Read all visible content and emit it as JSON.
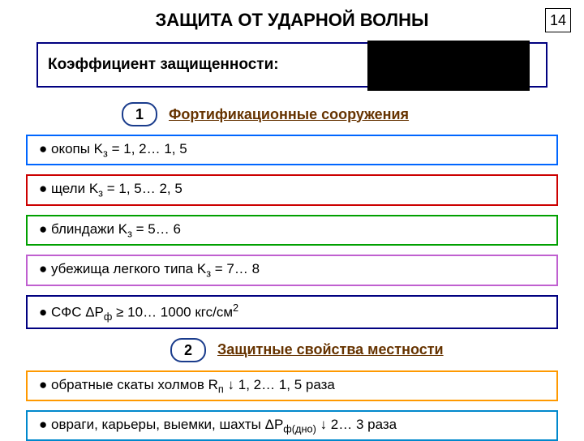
{
  "page_number": "14",
  "title": "ЗАЩИТА ОТ УДАРНОЙ ВОЛНЫ",
  "coefficient_label": "Коэффициент защищенности:",
  "blackbox_color": "#000000",
  "section1": {
    "num": "1",
    "title": "Фортификационные сооружения",
    "pill_border": "#1a3c8c",
    "title_color": "#663300"
  },
  "section2": {
    "num": "2",
    "title": "Защитные свойства местности",
    "pill_border": "#1a3c8c",
    "title_color": "#663300"
  },
  "items": [
    {
      "prefix": "● окопы  K",
      "sub": "з",
      "rest": " = 1, 2… 1, 5",
      "border": "#0066ff"
    },
    {
      "prefix": "●  щели  K",
      "sub": "з",
      "rest": " = 1, 5… 2, 5",
      "border": "#cc0000"
    },
    {
      "prefix": "●  блиндажи  K",
      "sub": "з",
      "rest": " = 5… 6",
      "border": "#00a000"
    },
    {
      "prefix": "●  убежища легкого типа  K",
      "sub": "з",
      "rest": " = 7… 8",
      "border": "#c060d0"
    },
    {
      "full_html": true,
      "text": "● СФС  ΔР",
      "sub": "ф",
      "mid": " ≥ 10… 1000 кгс/см",
      "sup": "2",
      "border": "#000080"
    }
  ],
  "items2": [
    {
      "prefix": "● обратные скаты холмов  R",
      "sub": "п",
      "rest": " ↓ 1, 2… 1, 5 раза",
      "border": "#ff9900"
    },
    {
      "prefix": "●  овраги, карьеры, выемки, шахты  ΔР",
      "sub": "ф(дно)",
      "rest": " ↓ 2… 3 раза",
      "border": "#0088cc"
    }
  ],
  "colors": {
    "coef_border": "#000080"
  }
}
